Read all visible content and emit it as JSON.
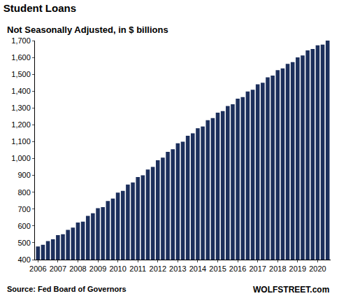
{
  "chart_data": {
    "type": "bar",
    "title": "Student Loans",
    "subtitle": "Not Seasonally Adjusted, in $ billions",
    "annotations": [
      "Source: Fed Board of Governors",
      "WOLFSTREET.com"
    ],
    "categories": [
      "2006",
      null,
      null,
      null,
      "2007",
      null,
      null,
      null,
      "2008",
      null,
      null,
      null,
      "2009",
      null,
      null,
      null,
      "2010",
      null,
      null,
      null,
      "2011",
      null,
      null,
      null,
      "2012",
      null,
      null,
      null,
      "2013",
      null,
      null,
      null,
      "2014",
      null,
      null,
      null,
      "2015",
      null,
      null,
      null,
      "2016",
      null,
      null,
      null,
      "2017",
      null,
      null,
      null,
      "2018",
      null,
      null,
      null,
      "2019",
      null,
      null,
      null,
      "2020",
      null,
      null
    ],
    "values": [
      478,
      488,
      510,
      521,
      545,
      551,
      576,
      590,
      620,
      625,
      660,
      675,
      705,
      712,
      748,
      762,
      798,
      808,
      845,
      858,
      890,
      900,
      935,
      950,
      990,
      1005,
      1040,
      1055,
      1090,
      1100,
      1135,
      1150,
      1180,
      1190,
      1228,
      1240,
      1272,
      1282,
      1312,
      1322,
      1355,
      1365,
      1398,
      1408,
      1440,
      1450,
      1482,
      1492,
      1525,
      1535,
      1562,
      1572,
      1600,
      1612,
      1642,
      1650,
      1672,
      1676,
      1700
    ],
    "color": "#1c2f5c",
    "ylim": [
      400,
      1700
    ],
    "yticks": [
      400,
      500,
      600,
      700,
      800,
      900,
      {
        "value": 1000,
        "label": "1,000"
      },
      {
        "value": 1100,
        "label": "1,100"
      },
      {
        "value": 1200,
        "label": "1,200"
      },
      {
        "value": 1300,
        "label": "1,300"
      },
      {
        "value": 1400,
        "label": "1,400"
      },
      {
        "value": 1500,
        "label": "1,500"
      },
      {
        "value": 1600,
        "label": "1,600"
      },
      {
        "value": 1700,
        "label": "1,700"
      }
    ],
    "grid": false
  }
}
